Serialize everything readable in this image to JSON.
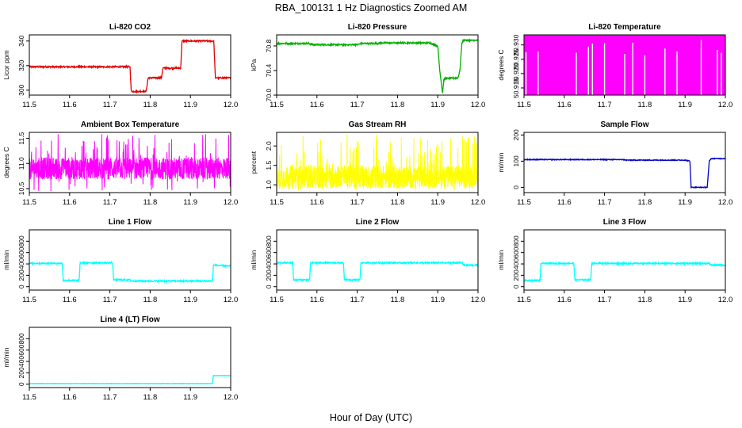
{
  "figure": {
    "title": "RBA_100131  1 Hz Diagnostics Zoomed AM",
    "xlabel": "Hour of Day (UTC)"
  },
  "chart_data": [
    {
      "type": "line",
      "title": "Li-820 CO2",
      "ylabel": "Licor ppm",
      "color": "#e00000",
      "xlim": [
        11.5,
        12.0
      ],
      "ylim": [
        296,
        345
      ],
      "yticks": [
        300,
        320,
        340
      ],
      "ytick_labels": [
        "300",
        "320",
        "340"
      ],
      "xticks": [
        11.5,
        11.6,
        11.7,
        11.8,
        11.9,
        12.0
      ],
      "xtick_labels": [
        "11.5",
        "11.6",
        "11.7",
        "11.8",
        "11.9",
        "12.0"
      ],
      "noise": 0.6,
      "series": [
        {
          "x": [
            11.5,
            11.75,
            11.753,
            11.79,
            11.795,
            11.828,
            11.832,
            11.876,
            11.879,
            11.958,
            11.962,
            12.0
          ],
          "y": [
            319,
            319,
            299,
            299,
            310,
            310,
            318,
            318,
            340,
            340,
            310,
            310
          ]
        }
      ]
    },
    {
      "type": "line",
      "title": "Li-820 Pressure",
      "ylabel": "kPa",
      "color": "#00b000",
      "xlim": [
        11.5,
        12.0
      ],
      "ylim": [
        70.0,
        70.98
      ],
      "yticks": [
        70.0,
        70.4,
        70.8
      ],
      "ytick_labels": [
        "70.0",
        "70.4",
        "70.8"
      ],
      "xticks": [
        11.5,
        11.6,
        11.7,
        11.8,
        11.9,
        12.0
      ],
      "xtick_labels": [
        "11.5",
        "11.6",
        "11.7",
        "11.8",
        "11.9",
        "12.0"
      ],
      "noise": 0.012,
      "series": [
        {
          "x": [
            11.5,
            11.58,
            11.59,
            11.7,
            11.71,
            11.75,
            11.76,
            11.88,
            11.9,
            11.905,
            11.912,
            11.915,
            11.918,
            11.95,
            11.955,
            11.96,
            11.965,
            11.975,
            12.0
          ],
          "y": [
            70.84,
            70.84,
            70.82,
            70.82,
            70.84,
            70.84,
            70.85,
            70.85,
            70.8,
            70.4,
            70.03,
            70.25,
            70.27,
            70.28,
            70.4,
            70.85,
            70.9,
            70.89,
            70.89
          ]
        }
      ]
    },
    {
      "type": "line",
      "title": "Li-820 Temperature",
      "ylabel": "degrees C",
      "color": "#ff00ff",
      "xlim": [
        11.5,
        12.0
      ],
      "ylim": [
        50.9125,
        50.9335
      ],
      "yticks": [
        50.915,
        50.92,
        50.925,
        50.93
      ],
      "ytick_labels": [
        "50.915",
        "50.920",
        "50.925",
        "50.930"
      ],
      "xticks": [
        11.5,
        11.6,
        11.7,
        11.8,
        11.9,
        12.0
      ],
      "xtick_labels": [
        "11.5",
        "11.6",
        "11.7",
        "11.8",
        "11.9",
        "12.0"
      ],
      "style": "toggle",
      "levels": [
        50.9125,
        50.9335
      ],
      "gaps": [
        11.505,
        11.535,
        11.63,
        11.66,
        11.67,
        11.7,
        11.75,
        11.77,
        11.8,
        11.85,
        11.88,
        11.94,
        11.98,
        11.99
      ]
    },
    {
      "type": "line",
      "title": "Ambient Box Temperature",
      "ylabel": "degrees C",
      "color": "#ff00ff",
      "xlim": [
        11.5,
        12.0
      ],
      "ylim": [
        10.42,
        11.62
      ],
      "yticks": [
        10.5,
        11.0,
        11.5
      ],
      "ytick_labels": [
        "10.5",
        "11.0",
        "11.5"
      ],
      "xticks": [
        11.5,
        11.6,
        11.7,
        11.8,
        11.9,
        12.0
      ],
      "xtick_labels": [
        "11.5",
        "11.6",
        "11.7",
        "11.8",
        "11.9",
        "12.0"
      ],
      "style": "noisy",
      "baseline": 10.9,
      "spread": 0.22,
      "spike_range": [
        10.45,
        11.6
      ]
    },
    {
      "type": "line",
      "title": "Gas Stream RH",
      "ylabel": "percent",
      "color": "#ffff00",
      "xlim": [
        11.5,
        12.0
      ],
      "ylim": [
        0.8,
        2.35
      ],
      "yticks": [
        1.0,
        1.5,
        2.0
      ],
      "ytick_labels": [
        "1.0",
        "1.5",
        "2.0"
      ],
      "xticks": [
        11.5,
        11.6,
        11.7,
        11.8,
        11.9,
        12.0
      ],
      "xtick_labels": [
        "11.5",
        "11.6",
        "11.7",
        "11.8",
        "11.9",
        "12.0"
      ],
      "style": "noisy",
      "baseline": 1.2,
      "spread": 0.3,
      "spike_range": [
        0.85,
        2.3
      ]
    },
    {
      "type": "line",
      "title": "Sample Flow",
      "ylabel": "ml/min",
      "color": "#0000cc",
      "xlim": [
        11.5,
        12.0
      ],
      "ylim": [
        -20,
        210
      ],
      "yticks": [
        0,
        100,
        200
      ],
      "ytick_labels": [
        "0",
        "100",
        "200"
      ],
      "xticks": [
        11.5,
        11.6,
        11.7,
        11.8,
        11.9,
        12.0
      ],
      "xtick_labels": [
        "11.5",
        "11.6",
        "11.7",
        "11.8",
        "11.9",
        "12.0"
      ],
      "noise": 1.5,
      "series": [
        {
          "x": [
            11.5,
            11.75,
            11.751,
            11.9,
            11.912,
            11.915,
            11.955,
            11.96,
            11.965,
            12.0
          ],
          "y": [
            106,
            106,
            104,
            104,
            100,
            0,
            0,
            100,
            110,
            110
          ]
        }
      ]
    },
    {
      "type": "line",
      "title": "Line 1 Flow",
      "ylabel": "ml/min",
      "color": "#00ffff",
      "xlim": [
        11.5,
        12.0
      ],
      "ylim": [
        -60,
        1000
      ],
      "yticks": [
        0,
        200,
        400,
        600,
        800
      ],
      "ytick_labels": [
        "0",
        "200",
        "400",
        "600",
        "800"
      ],
      "xticks": [
        11.5,
        11.6,
        11.7,
        11.8,
        11.9,
        12.0
      ],
      "xtick_labels": [
        "11.5",
        "11.6",
        "11.7",
        "11.8",
        "11.9",
        "12.0"
      ],
      "noise": 12,
      "series": [
        {
          "x": [
            11.5,
            11.582,
            11.584,
            11.624,
            11.626,
            11.707,
            11.709,
            11.75,
            11.752,
            11.955,
            11.957,
            12.0
          ],
          "y": [
            410,
            410,
            110,
            110,
            420,
            420,
            120,
            120,
            100,
            100,
            380,
            360
          ]
        }
      ]
    },
    {
      "type": "line",
      "title": "Line 2 Flow",
      "ylabel": "ml/min",
      "color": "#00ffff",
      "xlim": [
        11.5,
        12.0
      ],
      "ylim": [
        -60,
        1000
      ],
      "yticks": [
        0,
        200,
        400,
        600,
        800
      ],
      "ytick_labels": [
        "0",
        "200",
        "400",
        "600",
        "800"
      ],
      "xticks": [
        11.5,
        11.6,
        11.7,
        11.8,
        11.9,
        12.0
      ],
      "xtick_labels": [
        "11.5",
        "11.6",
        "11.7",
        "11.8",
        "11.9",
        "12.0"
      ],
      "noise": 12,
      "series": [
        {
          "x": [
            11.5,
            11.54,
            11.542,
            11.582,
            11.584,
            11.666,
            11.668,
            11.707,
            11.709,
            11.96,
            11.965,
            12.0
          ],
          "y": [
            420,
            420,
            120,
            120,
            420,
            420,
            120,
            120,
            420,
            420,
            380,
            380
          ]
        }
      ]
    },
    {
      "type": "line",
      "title": "Line 3 Flow",
      "ylabel": "ml/min",
      "color": "#00ffff",
      "xlim": [
        11.5,
        12.0
      ],
      "ylim": [
        -60,
        1000
      ],
      "yticks": [
        0,
        200,
        400,
        600,
        800
      ],
      "ytick_labels": [
        "0",
        "200",
        "400",
        "600",
        "800"
      ],
      "xticks": [
        11.5,
        11.6,
        11.7,
        11.8,
        11.9,
        12.0
      ],
      "xtick_labels": [
        "11.5",
        "11.6",
        "11.7",
        "11.8",
        "11.9",
        "12.0"
      ],
      "noise": 12,
      "series": [
        {
          "x": [
            11.5,
            11.54,
            11.542,
            11.624,
            11.626,
            11.666,
            11.668,
            11.96,
            11.965,
            12.0
          ],
          "y": [
            110,
            110,
            410,
            410,
            120,
            120,
            410,
            410,
            380,
            380
          ]
        }
      ]
    },
    {
      "type": "line",
      "title": "Line 4 (LT) Flow",
      "ylabel": "ml/min",
      "color": "#00ffff",
      "xlim": [
        11.5,
        12.0
      ],
      "ylim": [
        -60,
        1000
      ],
      "yticks": [
        0,
        200,
        400,
        600,
        800
      ],
      "ytick_labels": [
        "0",
        "200",
        "400",
        "600",
        "800"
      ],
      "xticks": [
        11.5,
        11.6,
        11.7,
        11.8,
        11.9,
        12.0
      ],
      "xtick_labels": [
        "11.5",
        "11.6",
        "11.7",
        "11.8",
        "11.9",
        "12.0"
      ],
      "noise": 3,
      "series": [
        {
          "x": [
            11.5,
            11.955,
            11.957,
            12.0
          ],
          "y": [
            10,
            10,
            150,
            150
          ]
        }
      ]
    }
  ]
}
